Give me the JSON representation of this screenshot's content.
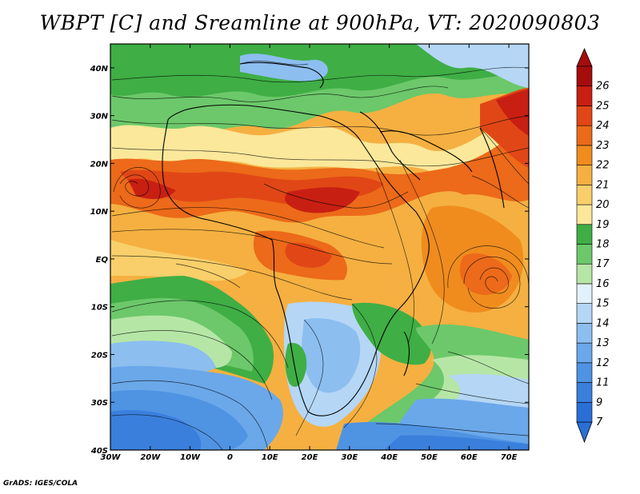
{
  "title": "WBPT [C] and Sreamline at 900hPa, VT: 2020090803",
  "credit": "GrADS: IGES/COLA",
  "map": {
    "lon_range": [
      -30,
      75
    ],
    "lat_range": [
      -40,
      45
    ],
    "lon_ticks": [
      {
        "value": -30,
        "label": "30W"
      },
      {
        "value": -20,
        "label": "20W"
      },
      {
        "value": -10,
        "label": "10W"
      },
      {
        "value": 0,
        "label": "0"
      },
      {
        "value": 10,
        "label": "10E"
      },
      {
        "value": 20,
        "label": "20E"
      },
      {
        "value": 30,
        "label": "30E"
      },
      {
        "value": 40,
        "label": "40E"
      },
      {
        "value": 50,
        "label": "50E"
      },
      {
        "value": 60,
        "label": "60E"
      },
      {
        "value": 70,
        "label": "70E"
      }
    ],
    "lat_ticks": [
      {
        "value": 40,
        "label": "40N"
      },
      {
        "value": 30,
        "label": "30N"
      },
      {
        "value": 20,
        "label": "20N"
      },
      {
        "value": 10,
        "label": "10N"
      },
      {
        "value": 0,
        "label": "EQ"
      },
      {
        "value": -10,
        "label": "10S"
      },
      {
        "value": -20,
        "label": "20S"
      },
      {
        "value": -30,
        "label": "30S"
      },
      {
        "value": -40,
        "label": "40S"
      }
    ]
  },
  "colorbar": {
    "levels": [
      {
        "label": "7",
        "color": "#2a6fd6"
      },
      {
        "label": "9",
        "color": "#3a7fdc"
      },
      {
        "label": "11",
        "color": "#4f93e3"
      },
      {
        "label": "12",
        "color": "#6aa8ea"
      },
      {
        "label": "13",
        "color": "#8cbef0"
      },
      {
        "label": "14",
        "color": "#b5d6f5"
      },
      {
        "label": "15",
        "color": "#e2f2fb"
      },
      {
        "label": "16",
        "color": "#b6e6a6"
      },
      {
        "label": "17",
        "color": "#6cc86a"
      },
      {
        "label": "18",
        "color": "#3fae45"
      },
      {
        "label": "19",
        "color": "#fbe89a"
      },
      {
        "label": "20",
        "color": "#f8cf6a"
      },
      {
        "label": "21",
        "color": "#f5b041"
      },
      {
        "label": "22",
        "color": "#f08c1e"
      },
      {
        "label": "23",
        "color": "#ec6a19"
      },
      {
        "label": "24",
        "color": "#e14716"
      },
      {
        "label": "25",
        "color": "#c81f13"
      },
      {
        "label": "26",
        "color": "#a50d0d"
      }
    ],
    "below_color": "#2a6fd6",
    "above_color": "#a50d0d"
  }
}
